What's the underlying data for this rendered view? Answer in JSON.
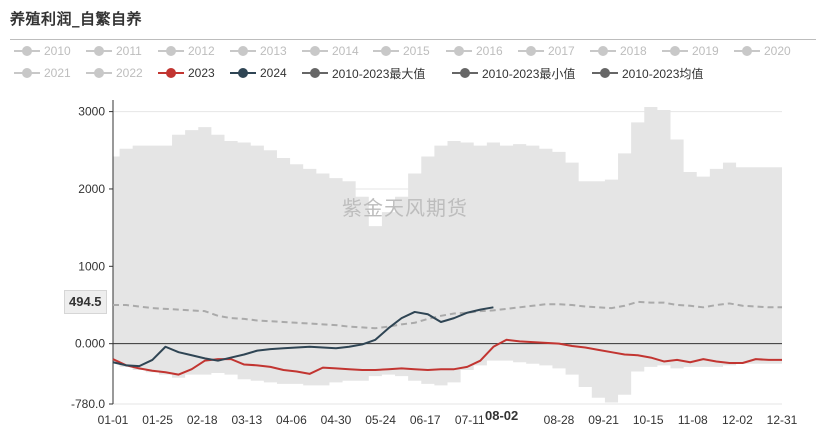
{
  "title": "养殖利润_自繁自养",
  "watermark": "紫金天风期货",
  "pointer": {
    "y_value_label": "494.5",
    "x_value_label": "08-02"
  },
  "colors": {
    "inactive": "#c8c8c8",
    "s2023": "#c23531",
    "s2024": "#2f4554",
    "max": "#666666",
    "min": "#666666",
    "avg": "#666666",
    "band": "#e5e5e5",
    "avgLine": "#aaaaaa"
  },
  "chart_data": {
    "type": "line",
    "title": "养殖利润_自繁自养",
    "ylim": [
      -780,
      3150
    ],
    "yticks": [
      {
        "value": 3000,
        "label": "3000"
      },
      {
        "value": 2000,
        "label": "2000"
      },
      {
        "value": 1000,
        "label": "1000"
      },
      {
        "value": 0,
        "label": "0.000"
      },
      {
        "value": -780,
        "label": "-780.0"
      }
    ],
    "xticks": [
      "01-01",
      "01-25",
      "02-18",
      "03-13",
      "04-06",
      "04-30",
      "05-24",
      "06-17",
      "07-11",
      "08-02",
      "08-28",
      "09-21",
      "10-15",
      "11-08",
      "12-02",
      "12-31"
    ],
    "x_week_range": [
      1,
      52
    ],
    "legend": [
      {
        "name": "2010",
        "active": false
      },
      {
        "name": "2011",
        "active": false
      },
      {
        "name": "2012",
        "active": false
      },
      {
        "name": "2013",
        "active": false
      },
      {
        "name": "2014",
        "active": false
      },
      {
        "name": "2015",
        "active": false
      },
      {
        "name": "2016",
        "active": false
      },
      {
        "name": "2017",
        "active": false
      },
      {
        "name": "2018",
        "active": false
      },
      {
        "name": "2019",
        "active": false
      },
      {
        "name": "2020",
        "active": false
      },
      {
        "name": "2021",
        "active": false
      },
      {
        "name": "2022",
        "active": false
      },
      {
        "name": "2023",
        "active": true,
        "color_key": "s2023"
      },
      {
        "name": "2024",
        "active": true,
        "color_key": "s2024"
      },
      {
        "name": "2010-2023最大值",
        "active": true,
        "color_key": "max"
      },
      {
        "name": "2010-2023最小值",
        "active": true,
        "color_key": "min"
      },
      {
        "name": "2010-2023均值",
        "active": true,
        "color_key": "avg"
      }
    ],
    "series": [
      {
        "name": "2010-2023最大值",
        "week": [
          1,
          2,
          3,
          4,
          5,
          6,
          7,
          8,
          9,
          10,
          11,
          12,
          13,
          14,
          15,
          16,
          17,
          18,
          19,
          20,
          21,
          22,
          23,
          24,
          25,
          26,
          27,
          28,
          29,
          30,
          31,
          32,
          33,
          34,
          35,
          36,
          37,
          38,
          39,
          40,
          41,
          42,
          43,
          44,
          45,
          46,
          47,
          48,
          49,
          50,
          51,
          52
        ],
        "values": [
          2420,
          2520,
          2560,
          2560,
          2560,
          2700,
          2760,
          2800,
          2700,
          2620,
          2600,
          2560,
          2500,
          2400,
          2320,
          2260,
          2200,
          2140,
          2100,
          1900,
          1520,
          1700,
          1900,
          2200,
          2420,
          2560,
          2620,
          2600,
          2560,
          2600,
          2560,
          2580,
          2560,
          2520,
          2480,
          2340,
          2100,
          2100,
          2120,
          2460,
          2860,
          3060,
          3020,
          2640,
          2220,
          2160,
          2260,
          2340,
          2280,
          2280,
          2280,
          2280
        ]
      },
      {
        "name": "2010-2023最小值",
        "week": [
          1,
          2,
          3,
          4,
          5,
          6,
          7,
          8,
          9,
          10,
          11,
          12,
          13,
          14,
          15,
          16,
          17,
          18,
          19,
          20,
          21,
          22,
          23,
          24,
          25,
          26,
          27,
          28,
          29,
          30,
          31,
          32,
          33,
          34,
          35,
          36,
          37,
          38,
          39,
          40,
          41,
          42,
          43,
          44,
          45,
          46,
          47,
          48,
          49,
          50,
          51,
          52
        ],
        "values": [
          -240,
          -300,
          -340,
          -370,
          -400,
          -440,
          -400,
          -400,
          -380,
          -400,
          -460,
          -480,
          -500,
          -520,
          -520,
          -540,
          -540,
          -500,
          -480,
          -480,
          -420,
          -400,
          -420,
          -480,
          -520,
          -540,
          -500,
          -340,
          -280,
          -220,
          -220,
          -240,
          -260,
          -280,
          -320,
          -400,
          -560,
          -700,
          -760,
          -660,
          -360,
          -300,
          -280,
          -320,
          -300,
          -300,
          -300,
          -280,
          -260,
          -260,
          -260,
          -260
        ]
      },
      {
        "name": "2010-2023均值",
        "week": [
          1,
          2,
          3,
          4,
          5,
          6,
          7,
          8,
          9,
          10,
          11,
          12,
          13,
          14,
          15,
          16,
          17,
          18,
          19,
          20,
          21,
          22,
          23,
          24,
          25,
          26,
          27,
          28,
          29,
          30,
          31,
          32,
          33,
          34,
          35,
          36,
          37,
          38,
          39,
          40,
          41,
          42,
          43,
          44,
          45,
          46,
          47,
          48,
          49,
          50,
          51,
          52
        ],
        "values": [
          500,
          500,
          480,
          460,
          450,
          440,
          430,
          420,
          360,
          330,
          320,
          300,
          290,
          280,
          270,
          260,
          250,
          240,
          220,
          210,
          200,
          220,
          250,
          270,
          320,
          360,
          390,
          400,
          420,
          430,
          450,
          470,
          490,
          510,
          510,
          500,
          480,
          470,
          460,
          490,
          540,
          530,
          530,
          500,
          490,
          470,
          500,
          520,
          490,
          480,
          470,
          470
        ]
      },
      {
        "name": "2023",
        "week": [
          1,
          2,
          3,
          4,
          5,
          6,
          7,
          8,
          9,
          10,
          11,
          12,
          13,
          14,
          15,
          16,
          17,
          18,
          19,
          20,
          21,
          22,
          23,
          24,
          25,
          26,
          27,
          28,
          29,
          30,
          31,
          32,
          33,
          34,
          35,
          36,
          37,
          38,
          39,
          40,
          41,
          42,
          43,
          44,
          45,
          46,
          47,
          48,
          49,
          50,
          51,
          52
        ],
        "values": [
          -200,
          -280,
          -320,
          -350,
          -370,
          -400,
          -330,
          -220,
          -200,
          -200,
          -270,
          -280,
          -300,
          -340,
          -360,
          -390,
          -310,
          -320,
          -330,
          -340,
          -340,
          -330,
          -320,
          -330,
          -340,
          -330,
          -330,
          -300,
          -220,
          -40,
          50,
          30,
          20,
          10,
          0,
          -30,
          -50,
          -80,
          -110,
          -140,
          -150,
          -180,
          -230,
          -210,
          -240,
          -200,
          -230,
          -250,
          -250,
          -200,
          -210,
          -210
        ]
      },
      {
        "name": "2024",
        "week": [
          1,
          2,
          3,
          4,
          5,
          6,
          7,
          8,
          9,
          10,
          11,
          12,
          13,
          14,
          15,
          16,
          17,
          18,
          19,
          20,
          21,
          22,
          23,
          24,
          25,
          26,
          27,
          28,
          29,
          30
        ],
        "values": [
          -240,
          -280,
          -290,
          -210,
          -40,
          -110,
          -150,
          -190,
          -220,
          -180,
          -140,
          -90,
          -70,
          -60,
          -50,
          -40,
          -50,
          -60,
          -40,
          -10,
          50,
          200,
          330,
          410,
          380,
          280,
          330,
          400,
          440,
          470
        ]
      }
    ]
  }
}
